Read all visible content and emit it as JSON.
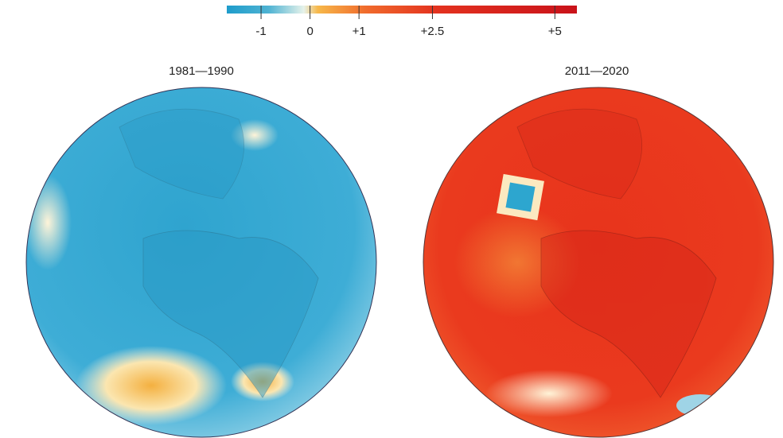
{
  "colorbar": {
    "xlim": [
      -1.7,
      5.45
    ],
    "ticks": [
      -1,
      0,
      {
        "value": 1,
        "label": "+1"
      },
      {
        "value": 2.5,
        "label": "+2.5"
      },
      {
        "value": 5,
        "label": "+5"
      }
    ]
  },
  "maps": [
    {
      "title": "1981—1990"
    },
    {
      "title": "2011—2020"
    }
  ]
}
